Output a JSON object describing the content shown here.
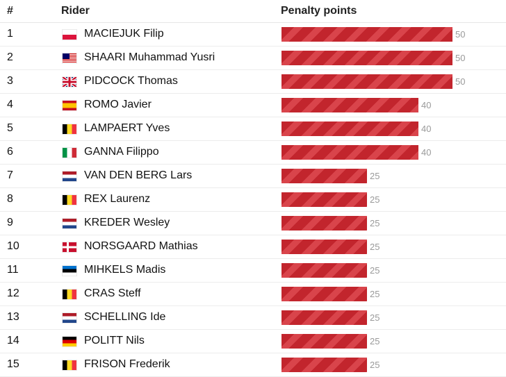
{
  "header": {
    "rank": "#",
    "rider": "Rider",
    "points": "Penalty points"
  },
  "bar_colors": {
    "primary": "#c2252d",
    "stripe": "#d9444b"
  },
  "max_points": 50,
  "rows": [
    {
      "rank": "1",
      "rider": "MACIEJUK Filip",
      "flag": "pl-flag-icon",
      "points": 50
    },
    {
      "rank": "2",
      "rider": "SHAARI Muhammad Yusri",
      "flag": "my-flag-icon",
      "points": 50
    },
    {
      "rank": "3",
      "rider": "PIDCOCK Thomas",
      "flag": "gb-flag-icon",
      "points": 50
    },
    {
      "rank": "4",
      "rider": "ROMO Javier",
      "flag": "es-flag-icon",
      "points": 40
    },
    {
      "rank": "5",
      "rider": "LAMPAERT Yves",
      "flag": "be-flag-icon",
      "points": 40
    },
    {
      "rank": "6",
      "rider": "GANNA Filippo",
      "flag": "it-flag-icon",
      "points": 40
    },
    {
      "rank": "7",
      "rider": "VAN DEN BERG Lars",
      "flag": "nl-flag-icon",
      "points": 25
    },
    {
      "rank": "8",
      "rider": "REX Laurenz",
      "flag": "be-flag-icon",
      "points": 25
    },
    {
      "rank": "9",
      "rider": "KREDER Wesley",
      "flag": "nl-flag-icon",
      "points": 25
    },
    {
      "rank": "10",
      "rider": "NORSGAARD Mathias",
      "flag": "dk-flag-icon",
      "points": 25
    },
    {
      "rank": "11",
      "rider": "MIHKELS Madis",
      "flag": "ee-flag-icon",
      "points": 25
    },
    {
      "rank": "12",
      "rider": "CRAS Steff",
      "flag": "be-flag-icon",
      "points": 25
    },
    {
      "rank": "13",
      "rider": "SCHELLING Ide",
      "flag": "nl-flag-icon",
      "points": 25
    },
    {
      "rank": "14",
      "rider": "POLITT Nils",
      "flag": "de-flag-icon",
      "points": 25
    },
    {
      "rank": "15",
      "rider": "FRISON Frederik",
      "flag": "be-flag-icon",
      "points": 25
    }
  ]
}
